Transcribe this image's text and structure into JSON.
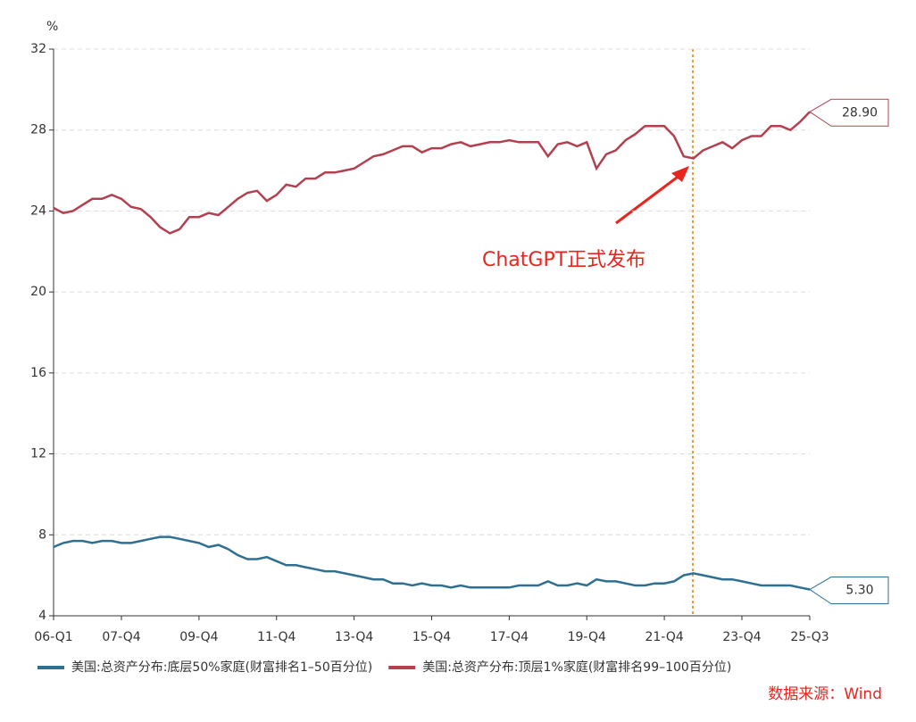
{
  "chart_data": {
    "type": "line",
    "y_unit": "%",
    "source": "数据来源：Wind",
    "annotation": "ChatGPT正式发布",
    "categories": [
      "06-Q1",
      null,
      null,
      null,
      null,
      null,
      null,
      "07-Q4",
      null,
      null,
      null,
      null,
      null,
      null,
      null,
      "09-Q4",
      null,
      null,
      null,
      null,
      null,
      null,
      null,
      "11-Q4",
      null,
      null,
      null,
      null,
      null,
      null,
      null,
      "13-Q4",
      null,
      null,
      null,
      null,
      null,
      null,
      null,
      "15-Q4",
      null,
      null,
      null,
      null,
      null,
      null,
      null,
      "17-Q4",
      null,
      null,
      null,
      null,
      null,
      null,
      null,
      "19-Q4",
      null,
      null,
      null,
      null,
      null,
      null,
      null,
      "21-Q4",
      null,
      null,
      null,
      null,
      null,
      null,
      null,
      "23-Q4",
      null,
      null,
      null,
      null,
      null,
      null,
      "25-Q3"
    ],
    "series": [
      {
        "name": "美国:总资产分布:底层50%家庭(财富排名1–50百分位)",
        "color": "#2f6f92",
        "last_label": "5.30",
        "values": [
          7.4,
          7.6,
          7.7,
          7.7,
          7.6,
          7.7,
          7.7,
          7.6,
          7.6,
          7.7,
          7.8,
          7.9,
          7.9,
          7.8,
          7.7,
          7.6,
          7.4,
          7.5,
          7.3,
          7.0,
          6.8,
          6.8,
          6.9,
          6.7,
          6.5,
          6.5,
          6.4,
          6.3,
          6.2,
          6.2,
          6.1,
          6.0,
          5.9,
          5.8,
          5.8,
          5.6,
          5.6,
          5.5,
          5.6,
          5.5,
          5.5,
          5.4,
          5.5,
          5.4,
          5.4,
          5.4,
          5.4,
          5.4,
          5.5,
          5.5,
          5.5,
          5.7,
          5.5,
          5.5,
          5.6,
          5.5,
          5.8,
          5.7,
          5.7,
          5.6,
          5.5,
          5.5,
          5.6,
          5.6,
          5.7,
          6.0,
          6.1,
          6.0,
          5.9,
          5.8,
          5.8,
          5.7,
          5.6,
          5.5,
          5.5,
          5.5,
          5.5,
          5.4,
          5.3
        ]
      },
      {
        "name": "美国:总资产分布:顶层1%家庭(财富排名99–100百分位)",
        "color": "#b3404f",
        "last_label": "28.90",
        "values": [
          24.15,
          23.9,
          24.0,
          24.3,
          24.6,
          24.6,
          24.8,
          24.6,
          24.2,
          24.1,
          23.7,
          23.2,
          22.9,
          23.1,
          23.7,
          23.7,
          23.9,
          23.8,
          24.2,
          24.6,
          24.9,
          25.0,
          24.5,
          24.8,
          25.3,
          25.2,
          25.6,
          25.6,
          25.9,
          25.9,
          26.0,
          26.1,
          26.4,
          26.7,
          26.8,
          27.0,
          27.2,
          27.2,
          26.9,
          27.1,
          27.1,
          27.3,
          27.4,
          27.2,
          27.3,
          27.4,
          27.4,
          27.5,
          27.4,
          27.4,
          27.4,
          26.7,
          27.3,
          27.4,
          27.2,
          27.4,
          26.1,
          26.8,
          27.0,
          27.5,
          27.8,
          28.2,
          28.2,
          28.2,
          27.7,
          26.7,
          26.6,
          27.0,
          27.2,
          27.4,
          27.1,
          27.5,
          27.7,
          27.7,
          28.2,
          28.2,
          28.0,
          28.4,
          28.9
        ]
      }
    ],
    "ylim": [
      4,
      32
    ],
    "yticks": [
      4,
      8,
      12,
      16,
      20,
      24,
      28,
      32
    ],
    "grid": true
  }
}
